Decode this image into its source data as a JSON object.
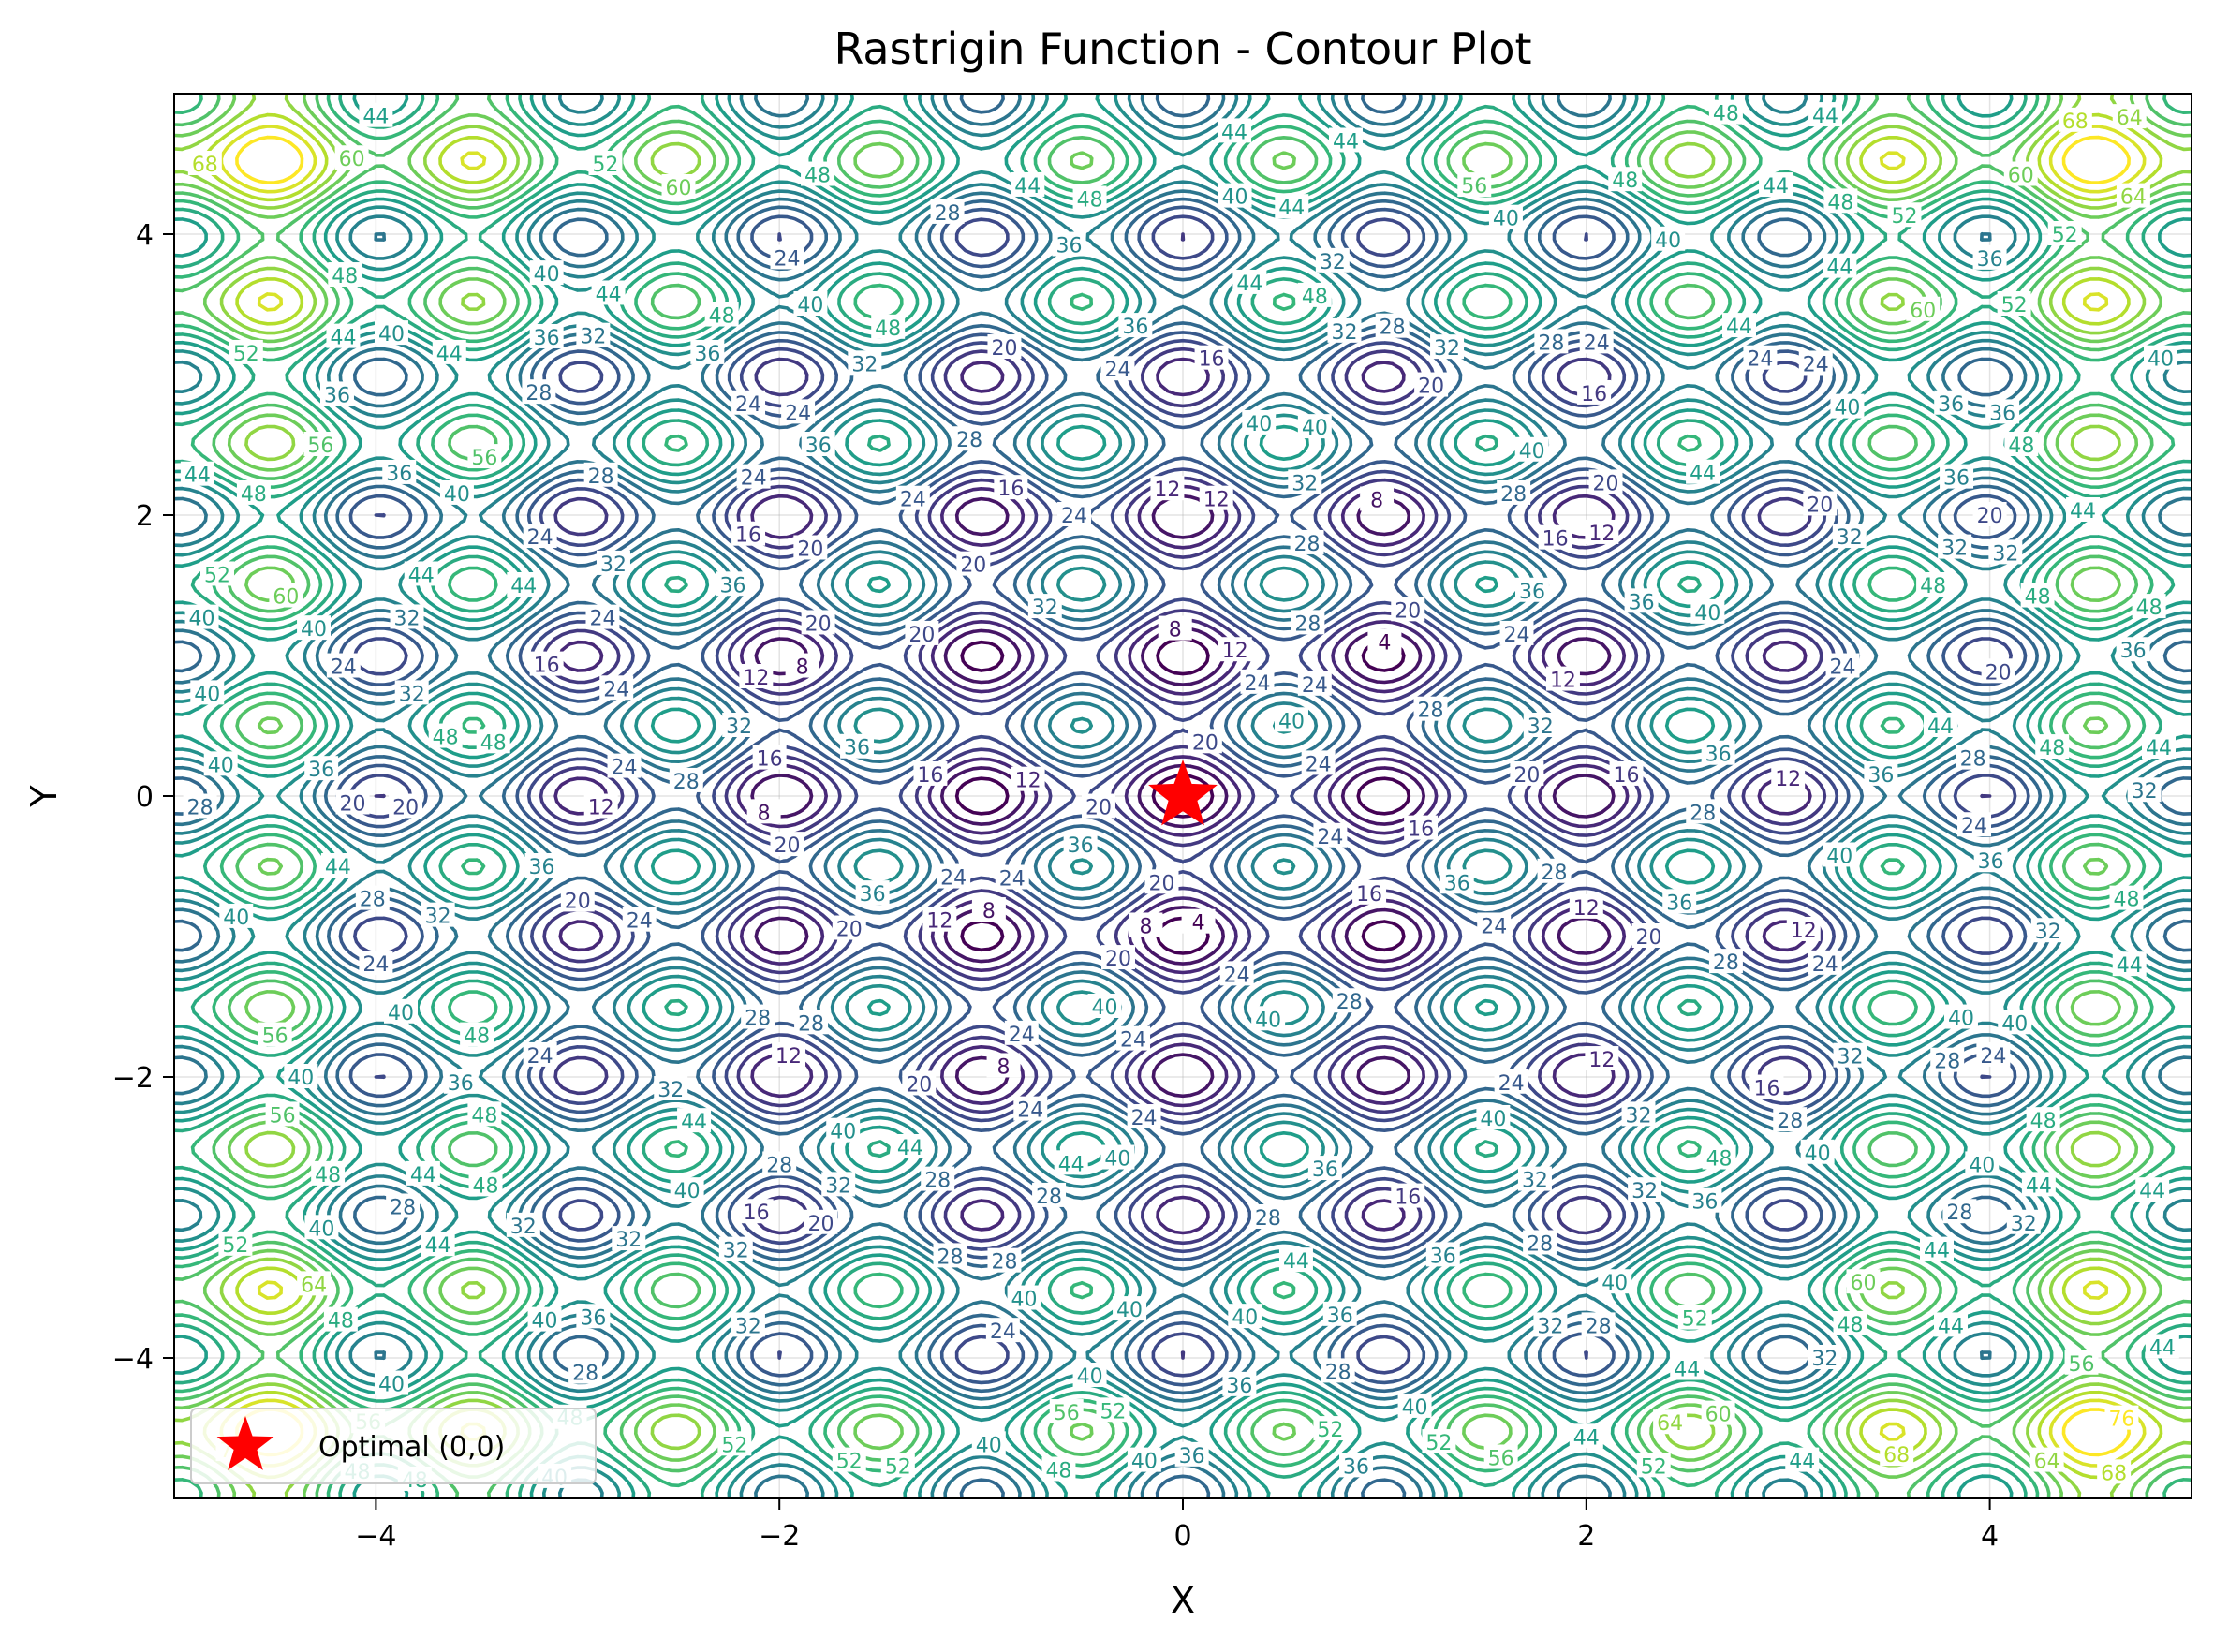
{
  "chart_data": {
    "type": "contour",
    "title": "Rastrigin Function - Contour Plot",
    "xlabel": "X",
    "ylabel": "Y",
    "xlim": [
      -5,
      5
    ],
    "ylim": [
      -5,
      5
    ],
    "xticks": [
      -4,
      -2,
      0,
      2,
      4
    ],
    "yticks": [
      -4,
      -2,
      0,
      2,
      4
    ],
    "xtick_labels": [
      "−4",
      "−2",
      "0",
      "2",
      "4"
    ],
    "ytick_labels": [
      "−4",
      "−2",
      "0",
      "2",
      "4"
    ],
    "function": "Rastrigin",
    "colormap": "viridis",
    "grid": true,
    "contour_levels": [
      4,
      8,
      12,
      16,
      20,
      24,
      28,
      32,
      36,
      40,
      44,
      48,
      52,
      56,
      60,
      64,
      68,
      72,
      76
    ],
    "markers": [
      {
        "name": "Optimal (0,0)",
        "x": 0,
        "y": 0,
        "symbol": "star",
        "color": "#ff0000"
      }
    ],
    "legend": {
      "position": "lower-left",
      "entries": [
        "Optimal (0,0)"
      ]
    }
  }
}
